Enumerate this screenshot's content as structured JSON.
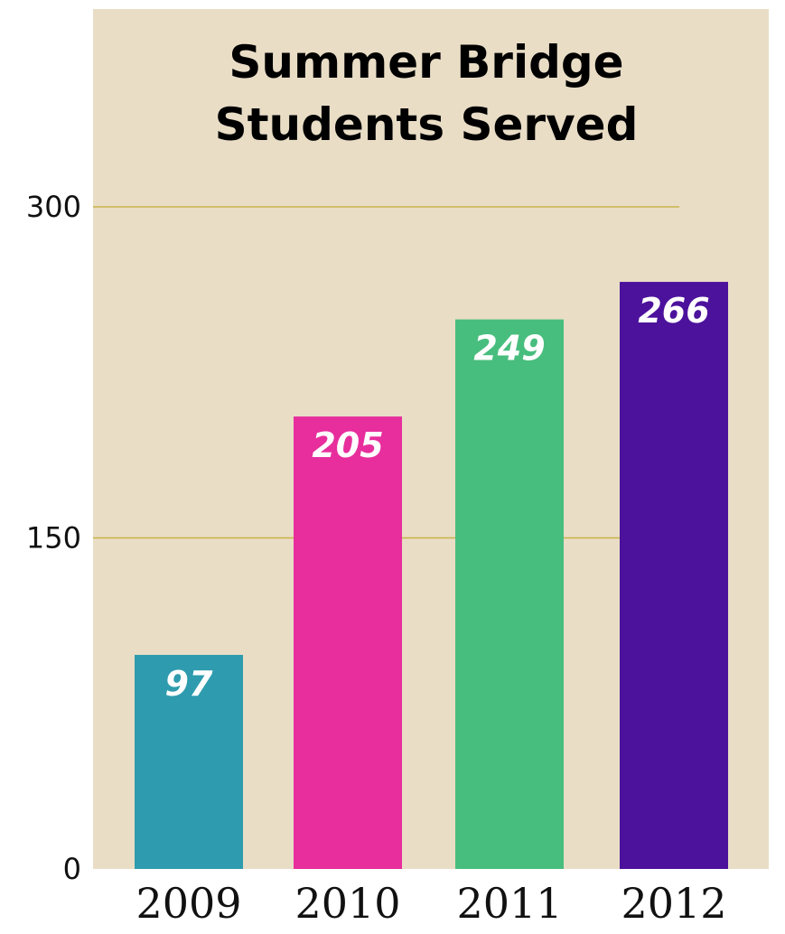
{
  "chart_data": {
    "type": "bar",
    "title_lines": [
      "Summer Bridge",
      "Students Served"
    ],
    "categories": [
      "2009",
      "2010",
      "2011",
      "2012"
    ],
    "values": [
      97,
      205,
      249,
      266
    ],
    "data_labels": [
      "97",
      "205",
      "249",
      "266"
    ],
    "bar_colors": [
      "#2e9cae",
      "#e72e9c",
      "#48be7e",
      "#4c129c"
    ],
    "ylim": [
      0,
      300
    ],
    "yticks": [
      0,
      150,
      300
    ],
    "ytick_labels": [
      "0",
      "150",
      "300"
    ],
    "grid": true,
    "gridline_color": "#c8b34a",
    "plot_background": "#e9ddc6",
    "xlabel": "",
    "ylabel": ""
  }
}
